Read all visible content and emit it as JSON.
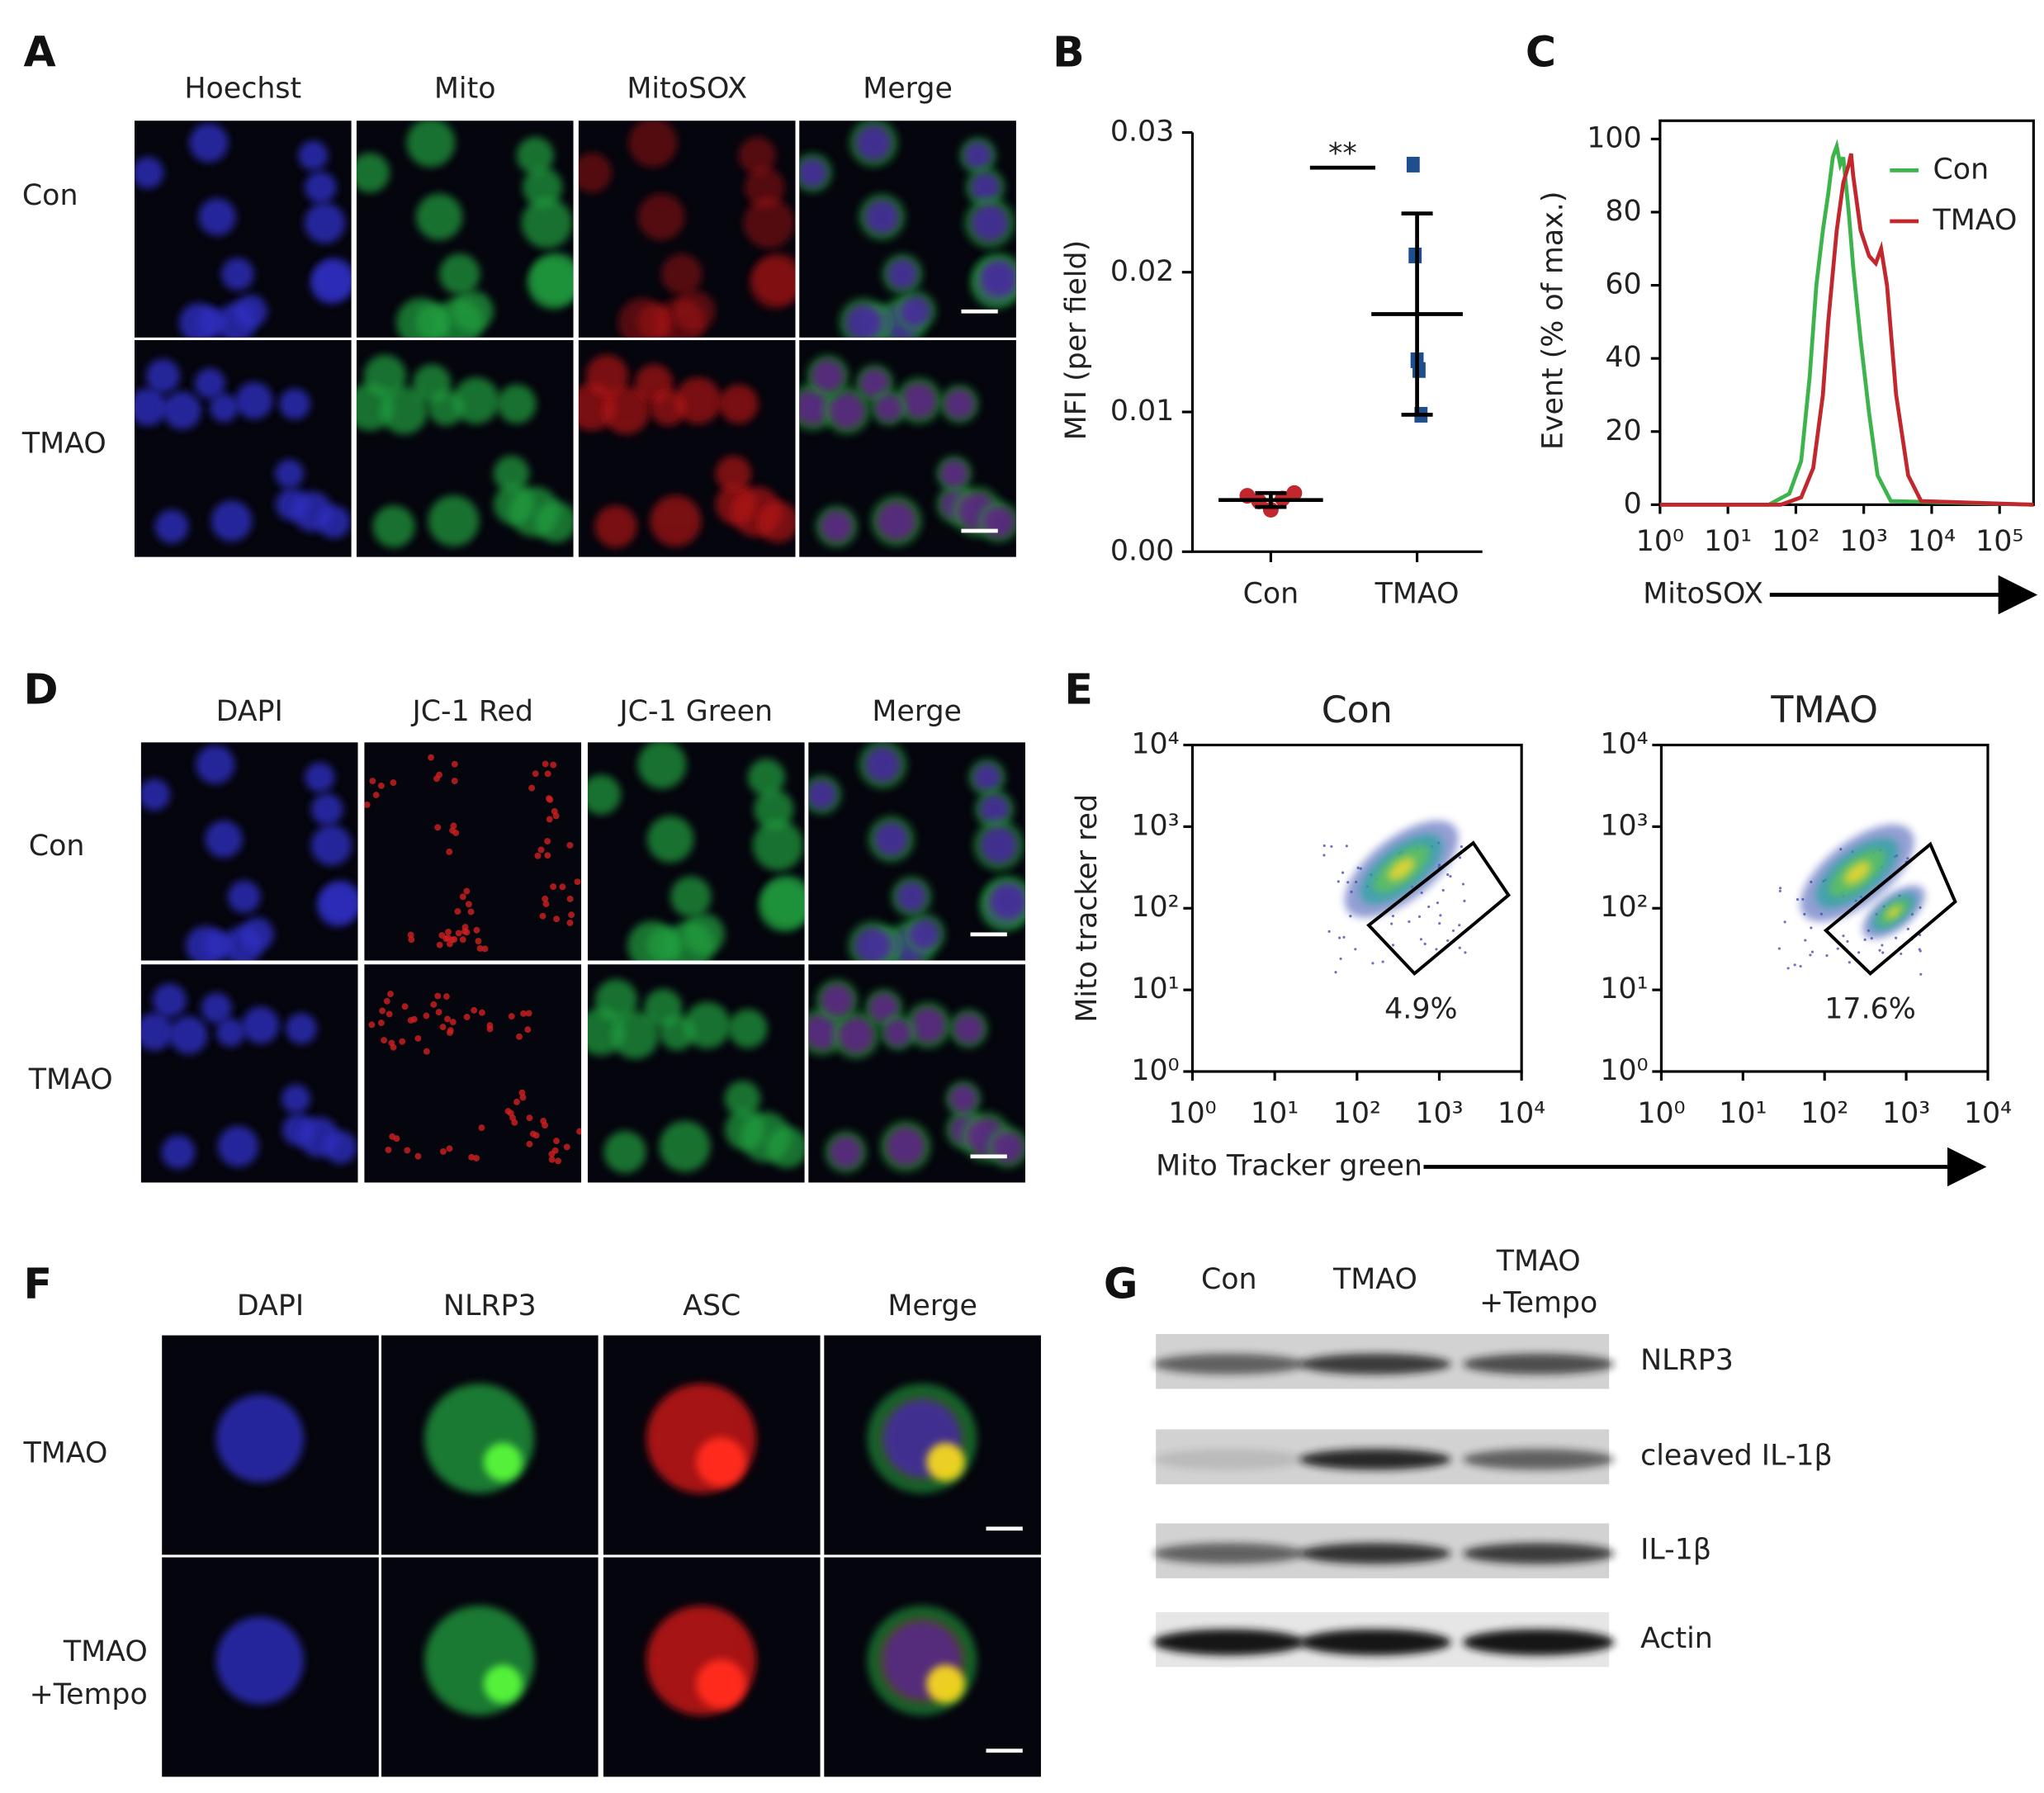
{
  "panel_letters": [
    "A",
    "B",
    "C",
    "D",
    "E",
    "F",
    "G"
  ],
  "panel_a": {
    "columns": [
      "Hoechst",
      "Mito",
      "MitoSOX",
      "Merge"
    ],
    "rows": [
      "Con",
      "TMAO"
    ]
  },
  "panel_d": {
    "columns": [
      "DAPI",
      "JC-1 Red",
      "JC-1 Green",
      "Merge"
    ],
    "rows": [
      "Con",
      "TMAO"
    ]
  },
  "panel_f": {
    "columns": [
      "DAPI",
      "NLRP3",
      "ASC",
      "Merge"
    ],
    "rows": [
      [
        "TMAO"
      ],
      [
        "TMAO",
        "+Tempo"
      ]
    ]
  },
  "panel_g": {
    "lanes": [
      [
        "Con"
      ],
      [
        "TMAO"
      ],
      [
        "TMAO",
        "+Tempo"
      ]
    ],
    "bands": [
      "NLRP3",
      "cleaved IL-1β",
      "IL-1β",
      "Actin"
    ]
  },
  "chart_data": [
    {
      "type": "dot",
      "ylabel": "MFI (per field)",
      "categories": [
        "Con",
        "TMAO"
      ],
      "values": [
        [
          0.004,
          0.0036,
          0.003,
          0.0038,
          0.0042
        ],
        [
          0.0277,
          0.0212,
          0.0137,
          0.013,
          0.0098
        ]
      ],
      "colors": [
        "#c1272d",
        "#1f4e8c"
      ],
      "markers": [
        "circle",
        "square"
      ],
      "means": [
        0.0037,
        0.017
      ],
      "errors": [
        0.0005,
        0.0072
      ],
      "ylim": [
        0,
        0.03
      ],
      "yticks": [
        {
          "value": 0,
          "label": "0.00"
        },
        0.01,
        0.02,
        0.03
      ],
      "significance": "**"
    },
    {
      "type": "line",
      "xlabel": "MitoSOX",
      "ylabel": "Event (% of max.)",
      "xscale": "log",
      "xlim": [
        1,
        316228
      ],
      "xticks": [
        {
          "value": 1,
          "label": "10⁰"
        },
        {
          "value": 10,
          "label": "10¹"
        },
        {
          "value": 100,
          "label": "10²"
        },
        {
          "value": 1000,
          "label": "10³"
        },
        {
          "value": 10000,
          "label": "10⁴"
        },
        {
          "value": 100000,
          "label": "10⁵"
        }
      ],
      "ylim": [
        0,
        105
      ],
      "yticks": [
        0,
        20,
        40,
        60,
        80,
        100
      ],
      "legend": "upper right",
      "series": [
        {
          "name": "Con",
          "color": "#3cb44b",
          "x": [
            1,
            40,
            80,
            120,
            160,
            200,
            250,
            300,
            350,
            400,
            450,
            500,
            600,
            700,
            900,
            1200,
            1600,
            2500,
            316228
          ],
          "values": [
            0,
            0,
            3,
            12,
            35,
            60,
            75,
            85,
            95,
            98,
            93,
            95,
            80,
            65,
            45,
            25,
            8,
            1,
            0
          ]
        },
        {
          "name": "TMAO",
          "color": "#c1272d",
          "x": [
            1,
            60,
            120,
            180,
            250,
            300,
            400,
            500,
            600,
            650,
            700,
            900,
            1200,
            1500,
            1800,
            2200,
            3000,
            4500,
            7000,
            316228
          ],
          "values": [
            0,
            0,
            2,
            10,
            30,
            50,
            75,
            88,
            93,
            96,
            90,
            75,
            68,
            66,
            70,
            60,
            30,
            8,
            1,
            0
          ]
        }
      ]
    },
    {
      "type": "scatter",
      "title": "Con",
      "xlabel": "Mito Tracker green",
      "ylabel": "Mito tracker red",
      "xscale": "log",
      "yscale": "log",
      "xlim": [
        1,
        10000
      ],
      "ylim": [
        1,
        10000
      ],
      "xticks": [
        {
          "value": 1,
          "label": "10⁰"
        },
        {
          "value": 10,
          "label": "10¹"
        },
        {
          "value": 100,
          "label": "10²"
        },
        {
          "value": 1000,
          "label": "10³"
        },
        {
          "value": 10000,
          "label": "10⁴"
        }
      ],
      "yticks": [
        {
          "value": 1,
          "label": "10⁰"
        },
        {
          "value": 10,
          "label": "10¹"
        },
        {
          "value": 100,
          "label": "10²"
        },
        {
          "value": 1000,
          "label": "10³"
        },
        {
          "value": 10000,
          "label": "10⁴"
        }
      ],
      "gate_label": "4.9%"
    },
    {
      "type": "scatter",
      "title": "TMAO",
      "xscale": "log",
      "yscale": "log",
      "xlim": [
        1,
        10000
      ],
      "ylim": [
        1,
        10000
      ],
      "xticks": [
        {
          "value": 1,
          "label": "10⁰"
        },
        {
          "value": 10,
          "label": "10¹"
        },
        {
          "value": 100,
          "label": "10²"
        },
        {
          "value": 1000,
          "label": "10³"
        },
        {
          "value": 10000,
          "label": "10⁴"
        }
      ],
      "yticks": [
        {
          "value": 1,
          "label": "10⁰"
        },
        {
          "value": 10,
          "label": "10¹"
        },
        {
          "value": 100,
          "label": "10²"
        },
        {
          "value": 1000,
          "label": "10³"
        },
        {
          "value": 10000,
          "label": "10⁴"
        }
      ],
      "gate_label": "17.6%"
    }
  ]
}
